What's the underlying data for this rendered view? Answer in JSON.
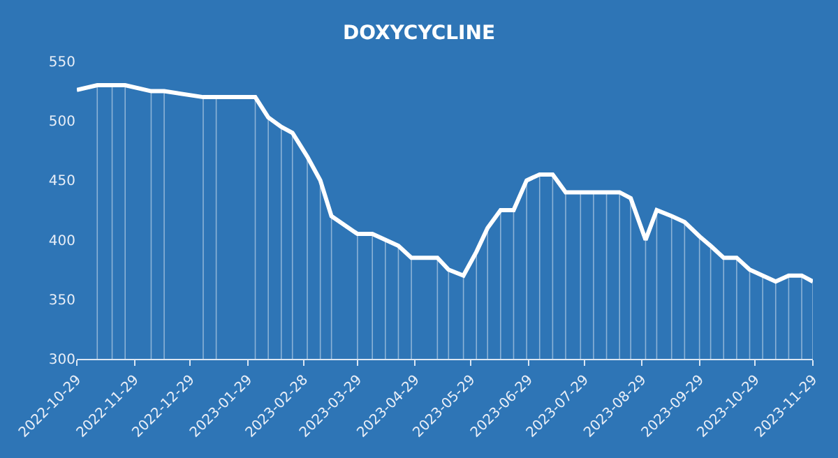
{
  "chart_data": {
    "type": "line",
    "title": "DOXYCYCLINE",
    "x": [
      "2022-10-29",
      "2022-11-09",
      "2022-11-17",
      "2022-11-24",
      "2022-12-08",
      "2022-12-15",
      "2023-01-05",
      "2023-01-12",
      "2023-02-02",
      "2023-02-09",
      "2023-02-16",
      "2023-02-22",
      "2023-03-02",
      "2023-03-09",
      "2023-03-15",
      "2023-03-29",
      "2023-04-06",
      "2023-04-13",
      "2023-04-20",
      "2023-04-27",
      "2023-05-11",
      "2023-05-17",
      "2023-05-25",
      "2023-06-01",
      "2023-06-07",
      "2023-06-14",
      "2023-06-21",
      "2023-06-28",
      "2023-07-05",
      "2023-07-12",
      "2023-07-19",
      "2023-07-27",
      "2023-08-03",
      "2023-08-10",
      "2023-08-17",
      "2023-08-23",
      "2023-08-31",
      "2023-09-06",
      "2023-09-14",
      "2023-09-21",
      "2023-09-29",
      "2023-10-05",
      "2023-10-12",
      "2023-10-19",
      "2023-10-26",
      "2023-11-02",
      "2023-11-09",
      "2023-11-16",
      "2023-11-23",
      "2023-11-29"
    ],
    "series": [
      {
        "color": "#ffffff",
        "values": [
          526,
          530,
          530,
          530,
          525,
          525,
          520,
          520,
          520,
          503,
          495,
          490,
          470,
          450,
          420,
          405,
          405,
          400,
          395,
          385,
          385,
          375,
          370,
          390,
          410,
          425,
          425,
          450,
          455,
          455,
          440,
          440,
          440,
          440,
          440,
          435,
          400,
          425,
          420,
          415,
          403,
          395,
          385,
          385,
          375,
          370,
          365,
          370,
          370,
          365
        ],
        "errors": [
          null,
          [
            300,
            530
          ],
          [
            300,
            530
          ],
          [
            300,
            530
          ],
          [
            300,
            525
          ],
          [
            300,
            525
          ],
          [
            300,
            520
          ],
          [
            300,
            520
          ],
          [
            300,
            520
          ],
          [
            300,
            503
          ],
          [
            300,
            495
          ],
          [
            300,
            490
          ],
          [
            300,
            470
          ],
          [
            300,
            450
          ],
          [
            300,
            420
          ],
          [
            300,
            405
          ],
          [
            300,
            405
          ],
          [
            300,
            400
          ],
          [
            300,
            395
          ],
          [
            300,
            385
          ],
          [
            300,
            385
          ],
          [
            300,
            375
          ],
          [
            300,
            370
          ],
          [
            300,
            390
          ],
          [
            300,
            410
          ],
          [
            300,
            425
          ],
          [
            300,
            425
          ],
          [
            300,
            450
          ],
          [
            300,
            455
          ],
          [
            300,
            455
          ],
          [
            300,
            440
          ],
          [
            300,
            440
          ],
          [
            300,
            440
          ],
          [
            300,
            440
          ],
          [
            300,
            440
          ],
          [
            300,
            435
          ],
          [
            300,
            400
          ],
          [
            300,
            425
          ],
          [
            300,
            420
          ],
          [
            300,
            415
          ],
          [
            300,
            403
          ],
          [
            300,
            395
          ],
          [
            300,
            385
          ],
          [
            300,
            385
          ],
          [
            300,
            375
          ],
          [
            300,
            370
          ],
          [
            300,
            365
          ],
          [
            300,
            370
          ],
          [
            300,
            370
          ],
          [
            300,
            365
          ]
        ]
      }
    ],
    "xlim": [
      "2022-10-29",
      "2023-11-29"
    ],
    "xticks": [
      "2022-10-29",
      "2022-11-29",
      "2022-12-29",
      "2023-01-29",
      "2023-02-28",
      "2023-03-29",
      "2023-04-29",
      "2023-05-29",
      "2023-06-29",
      "2023-07-29",
      "2023-08-29",
      "2023-09-29",
      "2023-10-29",
      "2023-11-29"
    ],
    "ylim": [
      300,
      550
    ],
    "yticks": [
      300,
      350,
      400,
      450,
      500,
      550
    ],
    "grid": false,
    "marker": "none",
    "line_style": "solid"
  }
}
